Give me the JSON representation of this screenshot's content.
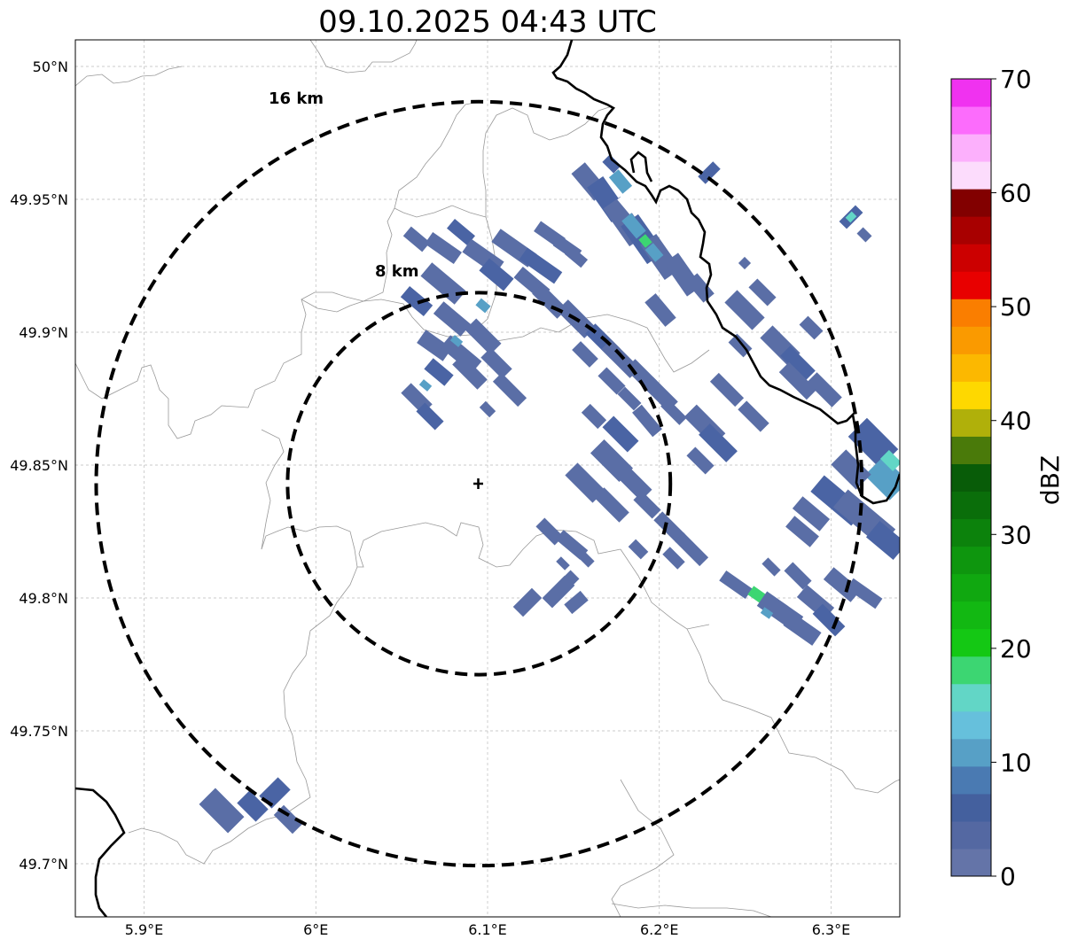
{
  "title": "09.10.2025 04:43 UTC",
  "map": {
    "lon_range": [
      5.86,
      6.34
    ],
    "lat_range": [
      49.68,
      50.01
    ],
    "grid": true,
    "x_ticks": [
      {
        "value": 5.9,
        "label": "5.9°E"
      },
      {
        "value": 6.0,
        "label": "6°E"
      },
      {
        "value": 6.1,
        "label": "6.1°E"
      },
      {
        "value": 6.2,
        "label": "6.2°E"
      },
      {
        "value": 6.3,
        "label": "6.3°E"
      }
    ],
    "y_ticks": [
      {
        "value": 50.0,
        "label": "50°N"
      },
      {
        "value": 49.95,
        "label": "49.95°N"
      },
      {
        "value": 49.9,
        "label": "49.9°N"
      },
      {
        "value": 49.85,
        "label": "49.85°N"
      },
      {
        "value": 49.8,
        "label": "49.8°N"
      },
      {
        "value": 49.75,
        "label": "49.75°N"
      },
      {
        "value": 49.7,
        "label": "49.7°N"
      }
    ],
    "center": {
      "lon": 6.095,
      "lat": 49.843
    },
    "range_rings": [
      {
        "label": "8 km",
        "radius_km": 8
      },
      {
        "label": "16 km",
        "radius_km": 16
      }
    ]
  },
  "colorbar": {
    "label": "dBZ",
    "ticks": [
      "0",
      "10",
      "20",
      "30",
      "40",
      "50",
      "60",
      "70"
    ],
    "min": 0,
    "max": 70,
    "step": 2.5,
    "colors": [
      "#6474a8",
      "#5468a2",
      "#44609e",
      "#4a7ab2",
      "#57a0c6",
      "#66c0dc",
      "#62d6c6",
      "#3cd672",
      "#14c814",
      "#12b812",
      "#10a810",
      "#0e960e",
      "#0c820c",
      "#0a6e0a",
      "#085c08",
      "#4a7a0a",
      "#b0b00a",
      "#fed800",
      "#fcb800",
      "#fa9a00",
      "#fa7e00",
      "#e80000",
      "#cc0000",
      "#a80000",
      "#820000",
      "#fcdcfc",
      "#fcb0fc",
      "#fc6cfc",
      "#f032f0"
    ]
  },
  "reflectivity_legend_colors": {
    "low": "#5a6ea6",
    "mid": "#4a64a4",
    "light": "#57a0c6",
    "cyan": "#62d6c6",
    "green": "#3cd672",
    "white": "#ffffff"
  }
}
